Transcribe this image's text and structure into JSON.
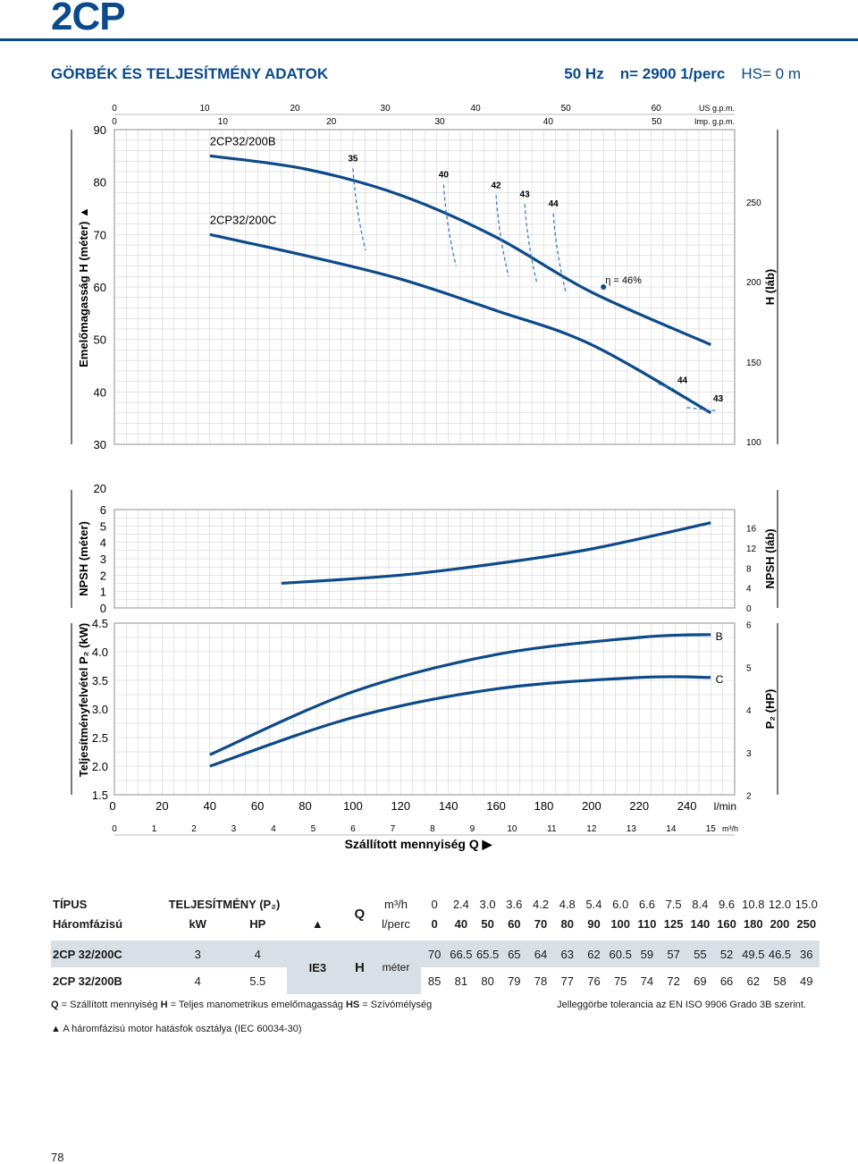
{
  "header": {
    "title": "2CP",
    "subtitle": "GÖRBÉK ÉS TELJESÍTMÉNY ADATOK",
    "freq": "50 Hz",
    "speed": "n= 2900 1/perc",
    "hs": "HS= 0 m"
  },
  "chart_data": {
    "type": "line",
    "x_unit": "l/min",
    "x_label": "Szállított mennyiség Q",
    "x_ticks_lmin": [
      "0",
      "20",
      "40",
      "60",
      "80",
      "100",
      "120",
      "140",
      "160",
      "180",
      "200",
      "220",
      "240"
    ],
    "x_ticks_m3h": [
      "0",
      "1",
      "2",
      "3",
      "4",
      "5",
      "6",
      "7",
      "8",
      "9",
      "10",
      "11",
      "12",
      "13",
      "14",
      "15"
    ],
    "x_ticks_m3h_unit": "m³/h",
    "x_ticks_us": [
      "0",
      "10",
      "20",
      "30",
      "40",
      "50",
      "60"
    ],
    "x_ticks_us_unit": "US g.p.m.",
    "x_ticks_imp": [
      "0",
      "10",
      "20",
      "30",
      "40",
      "50"
    ],
    "x_ticks_imp_unit": "Imp. g.p.m.",
    "head_panel": {
      "ylabel": "Emelőmagasság H (méter)",
      "ylabel_right": "H (láb)",
      "y_ticks": [
        "30",
        "40",
        "50",
        "60",
        "70",
        "80",
        "90"
      ],
      "y_ticks_right": [
        "100",
        "150",
        "200",
        "250"
      ],
      "ylim": [
        30,
        90
      ],
      "series": [
        {
          "name": "2CP32/200B",
          "x": [
            40,
            80,
            120,
            160,
            200,
            250
          ],
          "y": [
            85,
            82.5,
            77.5,
            69.5,
            59,
            49
          ]
        },
        {
          "name": "2CP32/200C",
          "x": [
            40,
            80,
            120,
            160,
            200,
            250
          ],
          "y": [
            70,
            66,
            61.5,
            55.5,
            49,
            36
          ]
        }
      ],
      "efficiency_labels": [
        "35",
        "40",
        "42",
        "43",
        "44",
        "η = 46%",
        "44",
        "43"
      ]
    },
    "npsh_panel": {
      "ylabel": "NPSH (méter)",
      "ylabel_right": "NPSH (láb)",
      "y_ticks": [
        "0",
        "1",
        "2",
        "3",
        "4",
        "5",
        "6"
      ],
      "y_ticks_right": [
        "0",
        "4",
        "8",
        "12",
        "16"
      ],
      "top_tick": "20",
      "ylim": [
        0,
        6
      ],
      "series": [
        {
          "x": [
            70,
            120,
            160,
            200,
            250
          ],
          "y": [
            1.5,
            2.0,
            2.7,
            3.6,
            5.2
          ]
        }
      ]
    },
    "power_panel": {
      "ylabel": "Teljesítményfelvétel P₂ (kW)",
      "ylabel_right": "P₂ (HP)",
      "y_ticks": [
        "1.5",
        "2.0",
        "2.5",
        "3.0",
        "3.5",
        "4.0",
        "4.5"
      ],
      "y_ticks_right": [
        "2",
        "3",
        "4",
        "5",
        "6"
      ],
      "ylim": [
        1.5,
        4.5
      ],
      "series": [
        {
          "name": "B",
          "x": [
            40,
            100,
            160,
            220,
            250
          ],
          "y": [
            2.2,
            3.3,
            3.95,
            4.25,
            4.3
          ]
        },
        {
          "name": "C",
          "x": [
            40,
            100,
            160,
            220,
            250
          ],
          "y": [
            2.0,
            2.85,
            3.35,
            3.55,
            3.55
          ]
        }
      ]
    }
  },
  "table": {
    "h_type": "TÍPUS",
    "h_perf": "TELJESÍTMÉNY (P₂)",
    "h_phase": "Háromfázisú",
    "h_kw": "kW",
    "h_hp": "HP",
    "h_tri": "▲",
    "h_q": "Q",
    "h_m3h": "m³/h",
    "h_lperc": "l/perc",
    "q_m3h": [
      "0",
      "2.4",
      "3.0",
      "3.6",
      "4.2",
      "4.8",
      "5.4",
      "6.0",
      "6.6",
      "7.5",
      "8.4",
      "9.6",
      "10.8",
      "12.0",
      "15.0"
    ],
    "q_lperc": [
      "0",
      "40",
      "50",
      "60",
      "70",
      "80",
      "90",
      "100",
      "110",
      "125",
      "140",
      "160",
      "180",
      "200",
      "250"
    ],
    "ie": "IE3",
    "h_h": "H",
    "h_meter": "méter",
    "rows": [
      {
        "type": "2CP 32/200C",
        "kw": "3",
        "hp": "4",
        "h": [
          "70",
          "66.5",
          "65.5",
          "65",
          "64",
          "63",
          "62",
          "60.5",
          "59",
          "57",
          "55",
          "52",
          "49.5",
          "46.5",
          "36"
        ]
      },
      {
        "type": "2CP 32/200B",
        "kw": "4",
        "hp": "5.5",
        "h": [
          "85",
          "81",
          "80",
          "79",
          "78",
          "77",
          "76",
          "75",
          "74",
          "72",
          "69",
          "66",
          "62",
          "58",
          "49"
        ]
      }
    ]
  },
  "notes": {
    "q_key": "Q",
    "q_text": " = Szállított mennyiség ",
    "h_key": "H",
    "h_text": " = Teljes manometrikus emelőmagasság ",
    "hs_key": "HS",
    "hs_text": " = Szívómélység",
    "right": "Jelleggörbe tolerancia az EN ISO 9906 Grado 3B szerint.",
    "motor": "▲  A háromfázisú motor hatásfok osztálya (IEC 60034-30)"
  },
  "page_number": "78",
  "colors": {
    "brand": "#0a4a8c",
    "curve": "#0d4a8a",
    "eff": "#3a7cc7",
    "grid": "#c9c9c9"
  }
}
